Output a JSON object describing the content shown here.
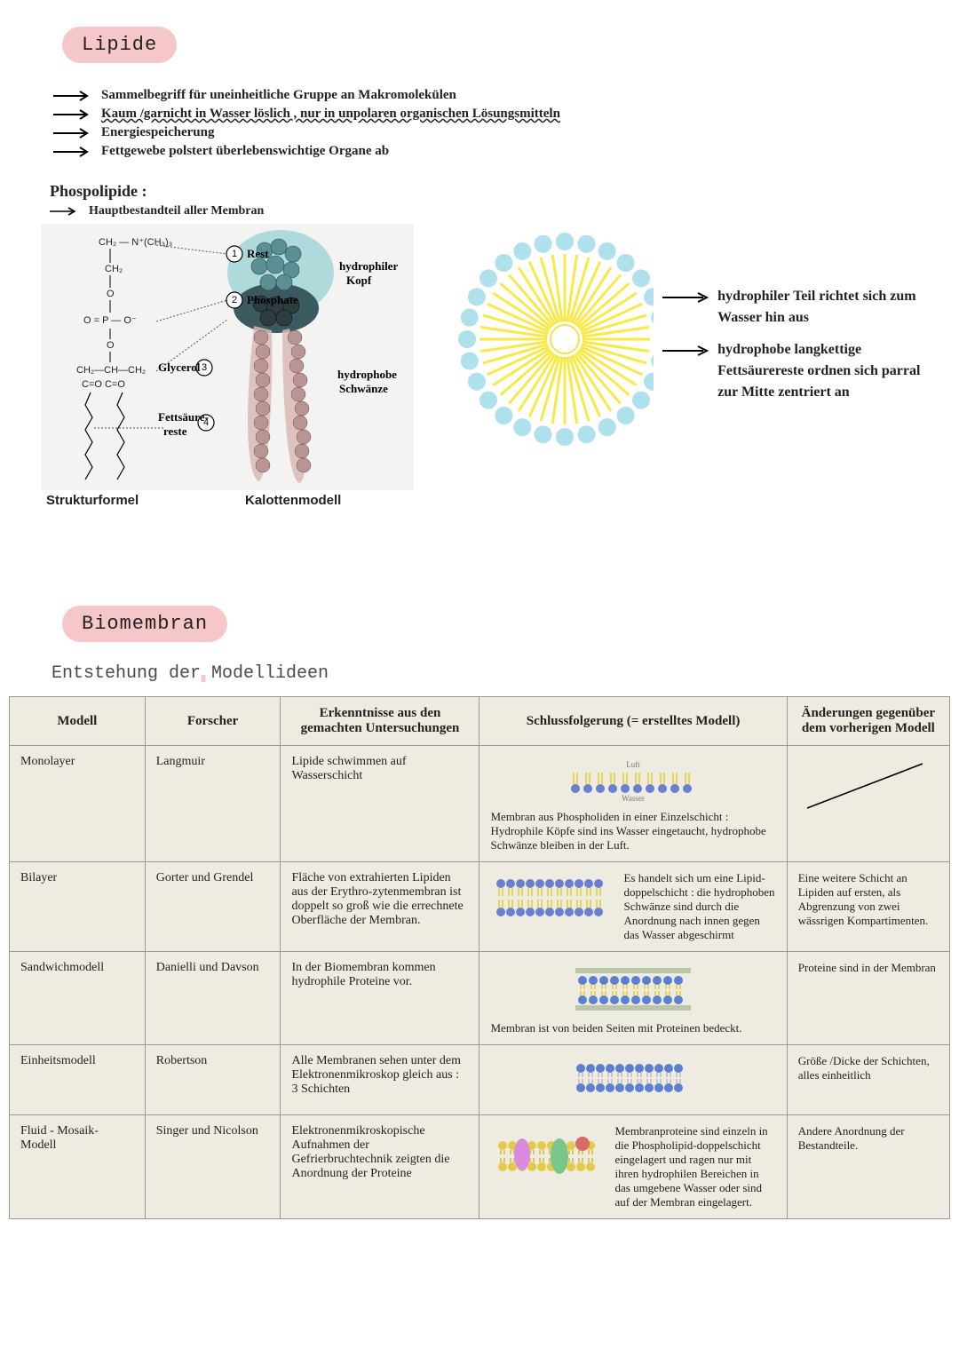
{
  "colors": {
    "pill_bg": "#f5c7c9",
    "pill_text": "#333333",
    "subheading_underline": "#f5c7c9",
    "table_bg": "#eeece0",
    "table_border": "#999999",
    "micelle_outer": "#aee1ec",
    "micelle_ray": "#f8e94a",
    "head_teal": "#4e8a8f",
    "tail_pink": "#c9a5a5",
    "bilayer_head": "#6b7fd1",
    "bilayer_tail": "#e5d55a",
    "sandwich_head": "#5d7fd1",
    "fluid_protein1": "#d88adf",
    "fluid_protein2": "#7ac58a"
  },
  "typography": {
    "handwritten_font": "Comic Sans MS",
    "mono_font": "Courier New",
    "heading_size_pt": 22,
    "body_size_pt": 15,
    "table_size_pt": 14
  },
  "heading1": "Lipide",
  "bullets": [
    "Sammelbegriff für uneinheitliche Gruppe an Makromolekülen",
    "Kaum /garnicht in Wasser löslich , nur in unpolaren organischen Lösungsmitteln",
    "Energiespeicherung",
    "Fettgewebe polstert überlebenswichtige Organe ab"
  ],
  "bullet_underline_flags": [
    false,
    true,
    false,
    false
  ],
  "phospho_heading": "Phospolipide :",
  "phospho_sub": "Hauptbestandteil aller Membran",
  "phospho": {
    "label_rest": "Rest",
    "label_phosphate": "Phosphate",
    "label_glycerol": "Glycerol",
    "label_fett": "Fettsäure-\nreste",
    "label_head": "hydrophiler\nKopf",
    "label_tails": "hydrophobe\nSchwänze",
    "struct": "Strukturformel",
    "kalott": "Kalottenmodell",
    "formula_top": "CH₂ — N⁺(CH₃)₃",
    "formula_mid": "O = P — O⁻",
    "formula_gly": "CH₂—CH—CH₂",
    "formula_o": "C=O  C=O"
  },
  "micelle": {
    "note1": "hydrophiler Teil richtet sich zum Wasser hin aus",
    "note2": "hydrophobe langkettige Fettsäurereste ordnen sich parral zur Mitte zentriert an",
    "outer_radius": 110,
    "inner_radius": 16,
    "dot_radius": 10,
    "dot_count": 28,
    "ray_count": 44
  },
  "heading2": "Biomembran",
  "subheading2": "Entstehung der Modellideen",
  "table": {
    "headers": [
      "Modell",
      "Forscher",
      "Erkenntnisse aus den gemachten Untersuchungen",
      "Schlussfolgerung (= erstelltes Modell)",
      "Änderungen gegenüber dem vorherigen Modell"
    ],
    "rows": [
      {
        "modell": "Monolayer",
        "forscher": "Langmuir",
        "erk": "Lipide schwimmen auf Wasserschicht",
        "schluss_text": "Membran aus Phospholiden in einer Einzelschicht : Hydrophile Köpfe sind ins Wasser eingetaucht, hydrophobe Schwänze bleiben in der Luft.",
        "schluss_labels": {
          "top": "Luft",
          "bottom": "Wasser"
        },
        "aend_type": "line"
      },
      {
        "modell": "Bilayer",
        "forscher": "Gorter und Grendel",
        "erk": "Fläche von extrahierten Lipiden aus der Erythro-zytenmembran ist doppelt so groß wie die errechnete Oberfläche der Membran.",
        "schluss_text": "Es handelt sich um eine Lipid-doppelschicht : die hydrophoben Schwänze sind durch die Anordnung nach innen gegen das Wasser abgeschirmt",
        "aend": "Eine weitere Schicht an Lipiden auf ersten, als Abgrenzung von zwei wässrigen Kompartimenten."
      },
      {
        "modell": "Sandwichmodell",
        "forscher": "Danielli und Davson",
        "erk": "In der Biomembran kommen hydrophile Proteine vor.",
        "schluss_text": "Membran ist von beiden Seiten mit Proteinen bedeckt.",
        "aend": "Proteine sind in der Membran"
      },
      {
        "modell": "Einheitsmodell",
        "forscher": "Robertson",
        "erk": "Alle Membranen sehen unter dem Elektronenmikroskop gleich aus : 3 Schichten",
        "schluss_text": "",
        "aend": "Größe /Dicke der Schichten, alles einheitlich"
      },
      {
        "modell": "Fluid - Mosaik-Modell",
        "forscher": "Singer und Nicolson",
        "erk": "Elektronenmikroskopische Aufnahmen der Gefrierbruchtechnik zeigten die Anordnung der Proteine",
        "schluss_text": "Membranproteine sind einzeln in die Phospholipid-doppelschicht eingelagert und ragen nur mit ihren hydrophilen Bereichen in das umgebene Wasser oder sind auf der Membran eingelagert.",
        "aend": "Andere Anordnung der Bestandteile."
      }
    ]
  }
}
